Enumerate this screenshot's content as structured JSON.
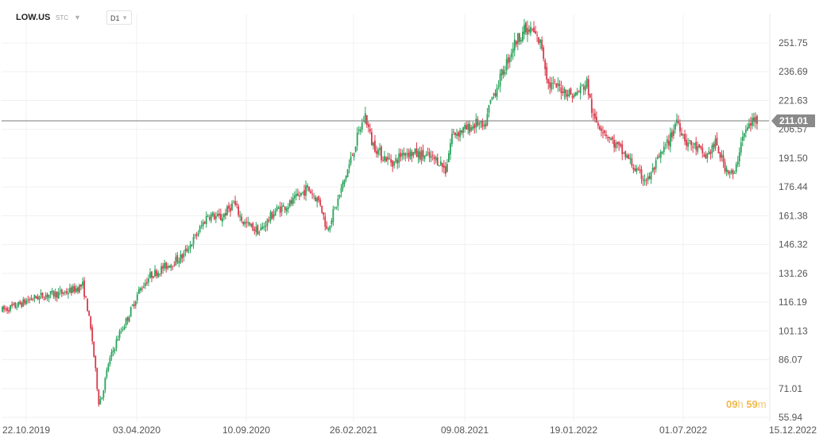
{
  "header": {
    "symbol": "LOW.US",
    "type": "STC",
    "timeframe": "D1"
  },
  "countdown": {
    "hours": "09",
    "hours_unit": "h",
    "minutes": "59",
    "minutes_unit": "m"
  },
  "colors": {
    "up": "#27a35a",
    "down": "#d9394b",
    "grid": "#f0f0f0",
    "price_line": "#7b7b7b",
    "label_bg": "#8a8a8a",
    "axis_text": "#555555"
  },
  "chart_data": {
    "type": "candlestick",
    "title": "LOW.US D1",
    "y_ticks": [
      "251.75",
      "236.69",
      "221.63",
      "206.57",
      "191.50",
      "176.44",
      "161.38",
      "146.32",
      "131.26",
      "116.19",
      "101.13",
      "86.07",
      "71.01",
      "55.94"
    ],
    "ylim": [
      55.94,
      266.81
    ],
    "x_ticks": [
      "22.10.2019",
      "03.04.2020",
      "10.09.2020",
      "26.02.2021",
      "09.08.2021",
      "19.01.2022",
      "01.07.2022",
      "15.12.2022"
    ],
    "current_price": 211.01,
    "price_path": [
      [
        0,
        112
      ],
      [
        8,
        114
      ],
      [
        18,
        118
      ],
      [
        28,
        120
      ],
      [
        38,
        121
      ],
      [
        45,
        123
      ],
      [
        50,
        125
      ],
      [
        53,
        113
      ],
      [
        56,
        96
      ],
      [
        60,
        64
      ],
      [
        62,
        67
      ],
      [
        66,
        84
      ],
      [
        72,
        98
      ],
      [
        78,
        108
      ],
      [
        85,
        122
      ],
      [
        92,
        130
      ],
      [
        100,
        134
      ],
      [
        112,
        140
      ],
      [
        120,
        150
      ],
      [
        128,
        162
      ],
      [
        136,
        160
      ],
      [
        144,
        168
      ],
      [
        150,
        158
      ],
      [
        160,
        153
      ],
      [
        170,
        164
      ],
      [
        180,
        168
      ],
      [
        190,
        176
      ],
      [
        198,
        168
      ],
      [
        202,
        154
      ],
      [
        208,
        167
      ],
      [
        216,
        188
      ],
      [
        222,
        205
      ],
      [
        226,
        214
      ],
      [
        230,
        200
      ],
      [
        236,
        193
      ],
      [
        244,
        189
      ],
      [
        250,
        195
      ],
      [
        262,
        193
      ],
      [
        272,
        190
      ],
      [
        276,
        185
      ],
      [
        280,
        204
      ],
      [
        290,
        207
      ],
      [
        296,
        210
      ],
      [
        300,
        206
      ],
      [
        304,
        221
      ],
      [
        312,
        237
      ],
      [
        318,
        250
      ],
      [
        324,
        258
      ],
      [
        330,
        258
      ],
      [
        336,
        250
      ],
      [
        340,
        230
      ],
      [
        348,
        228
      ],
      [
        356,
        224
      ],
      [
        364,
        231
      ],
      [
        368,
        212
      ],
      [
        372,
        209
      ],
      [
        380,
        200
      ],
      [
        390,
        191
      ],
      [
        396,
        183
      ],
      [
        402,
        180
      ],
      [
        410,
        193
      ],
      [
        416,
        202
      ],
      [
        420,
        212
      ],
      [
        426,
        200
      ],
      [
        432,
        197
      ],
      [
        438,
        192
      ],
      [
        444,
        199
      ],
      [
        450,
        187
      ],
      [
        456,
        182
      ],
      [
        460,
        201
      ],
      [
        466,
        210
      ],
      [
        470,
        212
      ]
    ]
  }
}
